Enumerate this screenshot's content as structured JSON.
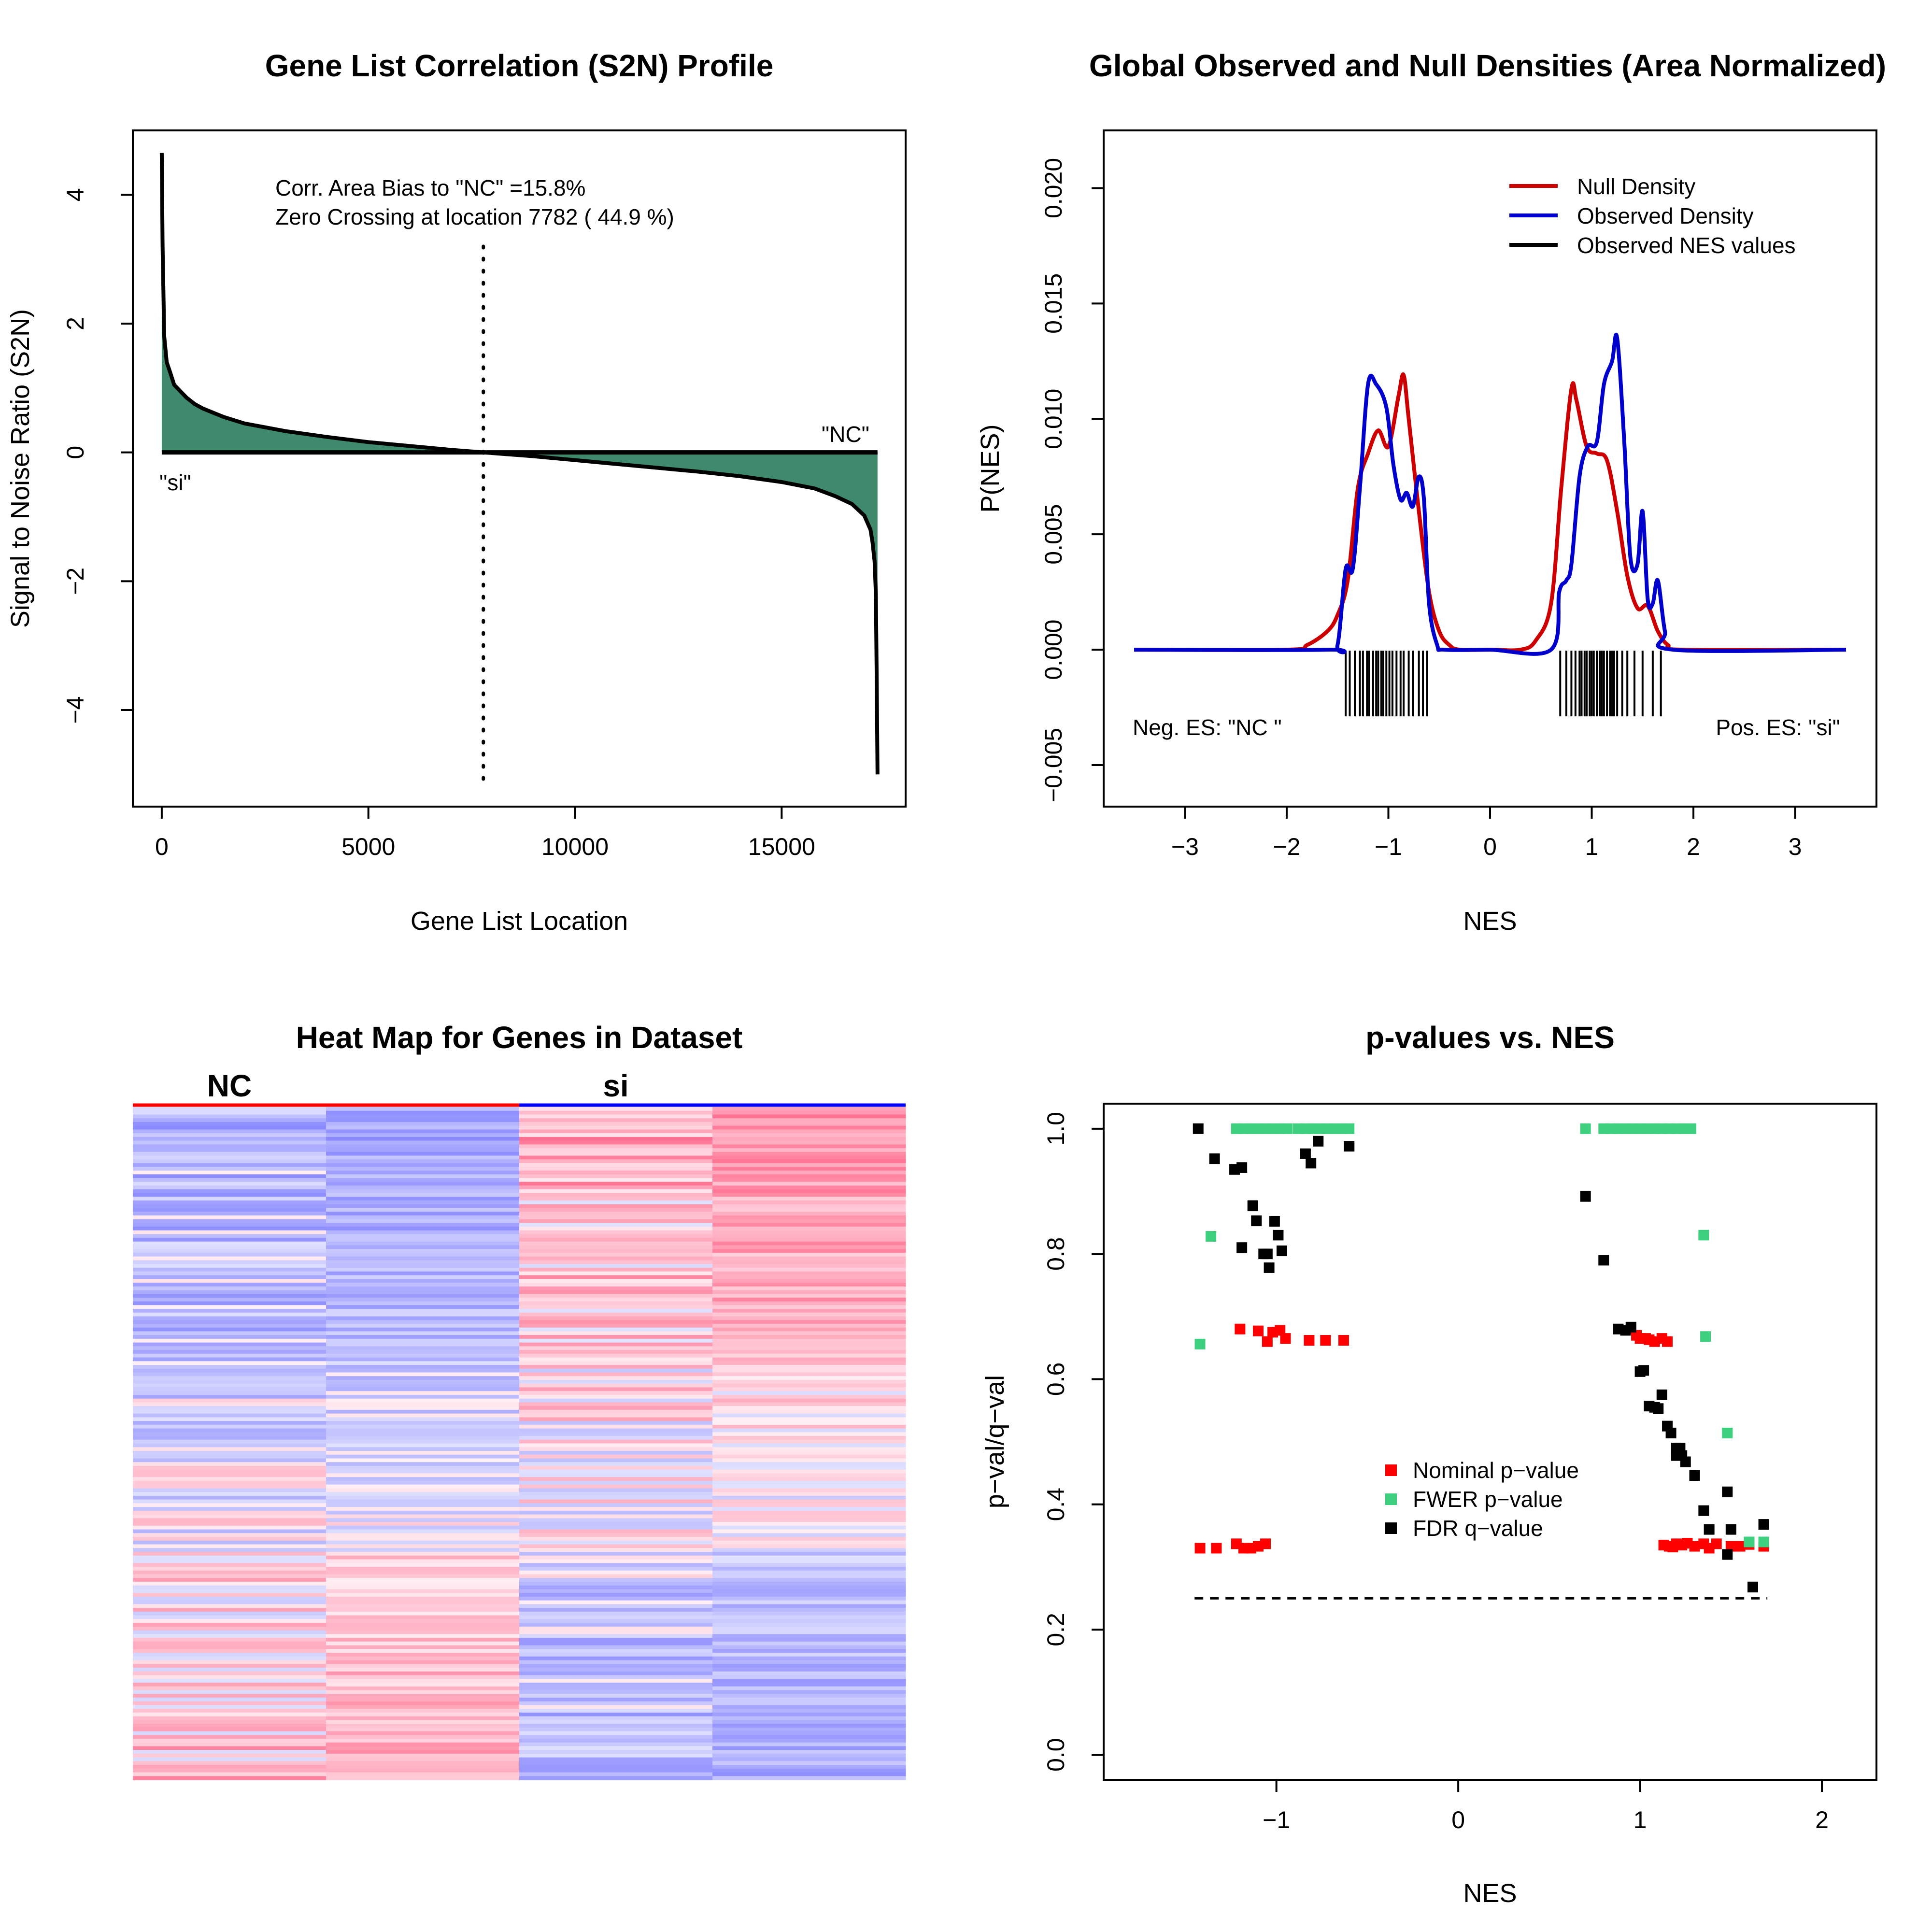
{
  "chart_data": [
    {
      "type": "area",
      "title": "Gene List Correlation (S2N) Profile",
      "xlabel": "Gene List Location",
      "ylabel": "Signal to Noise Ratio (S2N)",
      "xlim": [
        -700,
        18000
      ],
      "ylim": [
        -5.5,
        5.0
      ],
      "xticks": [
        0,
        5000,
        10000,
        15000
      ],
      "yticks": [
        -4,
        -2,
        0,
        2,
        4
      ],
      "annotations": [
        "Corr. Area Bias to \"NC\" =15.8%",
        "Zero Crossing at location  7782  ( 44.9  %)"
      ],
      "left_label": "\"si\"",
      "right_label": "\"NC\"",
      "zero_crossing": 7782,
      "fill_color": "#3f8a6c",
      "x": [
        0,
        20,
        60,
        120,
        200,
        300,
        450,
        600,
        800,
        1000,
        1500,
        2000,
        3000,
        4000,
        5000,
        6000,
        7000,
        7782,
        9000,
        10000,
        11000,
        12000,
        13000,
        14000,
        15000,
        15800,
        16300,
        16700,
        17000,
        17150,
        17200,
        17250,
        17280,
        17300,
        17320
      ],
      "values": [
        4.65,
        3.2,
        1.8,
        1.4,
        1.25,
        1.05,
        0.95,
        0.85,
        0.75,
        0.68,
        0.55,
        0.45,
        0.33,
        0.24,
        0.16,
        0.1,
        0.04,
        0.0,
        -0.06,
        -0.12,
        -0.18,
        -0.24,
        -0.3,
        -0.37,
        -0.46,
        -0.56,
        -0.68,
        -0.8,
        -0.98,
        -1.2,
        -1.4,
        -1.7,
        -2.2,
        -3.5,
        -5.0
      ]
    },
    {
      "type": "line",
      "title": "Global Observed and Null Densities (Area Normalized)",
      "xlabel": "NES",
      "ylabel": "P(NES)",
      "xlim": [
        -3.8,
        3.8
      ],
      "ylim": [
        -0.0068,
        0.0225
      ],
      "xticks": [
        -3,
        -2,
        -1,
        0,
        1,
        2,
        3
      ],
      "yticks": [
        -0.005,
        0.0,
        0.005,
        0.01,
        0.015,
        0.02
      ],
      "ytick_labels": [
        "−0.005",
        "0.000",
        "0.005",
        "0.010",
        "0.015",
        "0.020"
      ],
      "xtick_labels": [
        "−3",
        "−2",
        "−1",
        "0",
        "1",
        "2",
        "3"
      ],
      "legend": [
        "Null Density",
        "Observed Density",
        "Observed NES values"
      ],
      "legend_colors": [
        "#cc0000",
        "#0000cc",
        "#000000"
      ],
      "legend_position": "top-right",
      "left_label": "Neg. ES: \"NC \"",
      "right_label": "Pos. ES: \"si\"",
      "series": [
        {
          "name": "Null Density",
          "color": "#cc0000",
          "x": [
            -3.5,
            -2.0,
            -1.8,
            -1.6,
            -1.5,
            -1.4,
            -1.3,
            -1.2,
            -1.1,
            -1.0,
            -0.9,
            -0.85,
            -0.8,
            -0.7,
            -0.6,
            -0.5,
            -0.4,
            -0.3,
            0.0,
            0.3,
            0.45,
            0.6,
            0.7,
            0.8,
            0.85,
            0.95,
            1.05,
            1.15,
            1.25,
            1.35,
            1.45,
            1.55,
            1.65,
            1.75,
            1.9,
            3.5
          ],
          "values": [
            0,
            0,
            0.0002,
            0.0008,
            0.0015,
            0.003,
            0.007,
            0.0085,
            0.0095,
            0.0088,
            0.011,
            0.0119,
            0.01,
            0.006,
            0.0025,
            0.0008,
            0.0002,
            0,
            0,
            0,
            0.0004,
            0.002,
            0.007,
            0.0113,
            0.0108,
            0.0088,
            0.0085,
            0.0082,
            0.006,
            0.0032,
            0.0018,
            0.0019,
            0.0008,
            0.0002,
            0,
            0
          ]
        },
        {
          "name": "Observed Density",
          "color": "#0000cc",
          "x": [
            -3.5,
            -1.6,
            -1.5,
            -1.42,
            -1.35,
            -1.28,
            -1.2,
            -1.12,
            -1.02,
            -0.95,
            -0.88,
            -0.82,
            -0.76,
            -0.7,
            -0.65,
            -0.6,
            -0.52,
            -0.45,
            0.0,
            0.6,
            0.68,
            0.75,
            0.8,
            0.88,
            0.96,
            1.05,
            1.12,
            1.2,
            1.25,
            1.32,
            1.38,
            1.45,
            1.5,
            1.55,
            1.6,
            1.65,
            1.72,
            1.8,
            3.5
          ],
          "values": [
            0,
            0,
            0.0002,
            0.0035,
            0.0035,
            0.007,
            0.0115,
            0.0115,
            0.0105,
            0.008,
            0.0065,
            0.0068,
            0.0062,
            0.0075,
            0.0065,
            0.002,
            0.0002,
            0,
            0,
            0,
            0.0025,
            0.003,
            0.0037,
            0.0075,
            0.0088,
            0.009,
            0.0115,
            0.0125,
            0.0135,
            0.009,
            0.004,
            0.0037,
            0.006,
            0.0022,
            0.002,
            0.003,
            0.0008,
            0,
            0
          ]
        },
        {
          "name": "Observed NES values",
          "color": "#000000",
          "x": [
            -1.42,
            -1.38,
            -1.33,
            -1.28,
            -1.25,
            -1.21,
            -1.19,
            -1.15,
            -1.12,
            -1.1,
            -1.07,
            -1.05,
            -1.02,
            -0.99,
            -0.96,
            -0.92,
            -0.88,
            -0.85,
            -0.8,
            -0.76,
            -0.7,
            -0.66,
            -0.62,
            0.69,
            0.75,
            0.8,
            0.84,
            0.88,
            0.9,
            0.93,
            0.95,
            0.98,
            1.0,
            1.02,
            1.05,
            1.08,
            1.1,
            1.12,
            1.15,
            1.18,
            1.2,
            1.22,
            1.25,
            1.3,
            1.35,
            1.42,
            1.5,
            1.6,
            1.68
          ]
        }
      ]
    },
    {
      "type": "heatmap",
      "title": "Heat Map for Genes in Dataset",
      "column_groups": [
        "NC",
        "si"
      ],
      "columns": 4,
      "low_color": "#a9a9ff",
      "high_color": "#ff8a9a"
    },
    {
      "type": "scatter",
      "title": "p-values vs. NES",
      "xlabel": "NES",
      "ylabel": "p−val/q−val",
      "xlim": [
        -1.95,
        2.3
      ],
      "ylim": [
        -0.04,
        1.04
      ],
      "xticks": [
        -1,
        0,
        1,
        2
      ],
      "xtick_labels": [
        "−1",
        "0",
        "1",
        "2"
      ],
      "yticks": [
        0.0,
        0.2,
        0.4,
        0.6,
        0.8,
        1.0
      ],
      "ytick_labels": [
        "0.0",
        "0.2",
        "0.4",
        "0.6",
        "0.8",
        "1.0"
      ],
      "threshold": 0.25,
      "threshold_x": [
        -1.45,
        1.7
      ],
      "legend": [
        "Nominal p−value",
        "FWER p−value",
        "FDR q−value"
      ],
      "legend_position": "center",
      "series": [
        {
          "name": "Nominal p−value",
          "color": "#ff0000",
          "x": [
            -1.42,
            -1.33,
            -1.22,
            -1.18,
            -1.14,
            -1.1,
            -1.06,
            -1.2,
            -1.1,
            -1.05,
            -1.02,
            -0.98,
            -0.95,
            -0.82,
            -0.73,
            -0.63,
            0.95,
            0.98,
            1.0,
            1.03,
            1.05,
            1.08,
            1.12,
            1.15,
            1.13,
            1.16,
            1.18,
            1.2,
            1.23,
            1.26,
            1.3,
            1.35,
            1.38,
            1.42,
            1.5,
            1.55,
            1.6,
            1.68
          ],
          "values": [
            0.33,
            0.33,
            0.337,
            0.33,
            0.33,
            0.333,
            0.337,
            0.68,
            0.677,
            0.66,
            0.675,
            0.678,
            0.665,
            0.662,
            0.662,
            0.662,
            0.68,
            0.67,
            0.665,
            0.665,
            0.663,
            0.66,
            0.665,
            0.66,
            0.335,
            0.333,
            0.332,
            0.337,
            0.335,
            0.338,
            0.333,
            0.337,
            0.33,
            0.337,
            0.333,
            0.333,
            0.336,
            0.333
          ]
        },
        {
          "name": "FWER p−value",
          "color": "#3ecf7f",
          "x": [
            -1.42,
            -1.36,
            -1.22,
            -1.18,
            -1.14,
            -1.1,
            -1.06,
            -1.02,
            -0.98,
            -0.94,
            -0.88,
            -0.84,
            -0.8,
            -0.76,
            -0.72,
            -0.68,
            -0.64,
            -0.6,
            0.7,
            0.8,
            0.84,
            0.88,
            0.92,
            0.96,
            1.0,
            1.04,
            1.08,
            1.12,
            1.16,
            1.2,
            1.24,
            1.28,
            1.35,
            1.36,
            1.48,
            1.6,
            1.68
          ],
          "values": [
            0.656,
            0.828,
            1.0,
            1.0,
            1.0,
            1.0,
            1.0,
            1.0,
            1.0,
            1.0,
            1.0,
            1.0,
            1.0,
            1.0,
            1.0,
            1.0,
            1.0,
            1.0,
            1.0,
            1.0,
            1.0,
            1.0,
            1.0,
            1.0,
            1.0,
            1.0,
            1.0,
            1.0,
            1.0,
            1.0,
            1.0,
            1.0,
            0.83,
            0.668,
            0.514,
            0.34,
            0.34
          ]
        },
        {
          "name": "FDR q−value",
          "color": "#000000",
          "x": [
            -1.43,
            -1.34,
            -1.23,
            -1.19,
            -1.13,
            -1.11,
            -1.19,
            -1.07,
            -1.01,
            -0.99,
            -1.04,
            -0.97,
            -1.05,
            -0.84,
            -0.81,
            -0.77,
            -0.6,
            0.7,
            0.8,
            0.88,
            0.92,
            0.95,
            1.0,
            1.02,
            1.05,
            1.08,
            1.12,
            1.1,
            1.15,
            1.17,
            1.2,
            1.22,
            1.23,
            1.25,
            1.2,
            1.3,
            1.35,
            1.38,
            1.48,
            1.5,
            1.48,
            1.62,
            1.68
          ],
          "values": [
            1.0,
            0.952,
            0.935,
            0.938,
            0.877,
            0.853,
            0.81,
            0.8,
            0.852,
            0.83,
            0.778,
            0.805,
            0.8,
            0.96,
            0.945,
            0.98,
            0.972,
            0.892,
            0.79,
            0.68,
            0.678,
            0.683,
            0.612,
            0.614,
            0.557,
            0.555,
            0.575,
            0.553,
            0.525,
            0.514,
            0.49,
            0.49,
            0.478,
            0.468,
            0.478,
            0.446,
            0.39,
            0.36,
            0.42,
            0.36,
            0.32,
            0.268,
            0.368
          ]
        }
      ]
    }
  ]
}
